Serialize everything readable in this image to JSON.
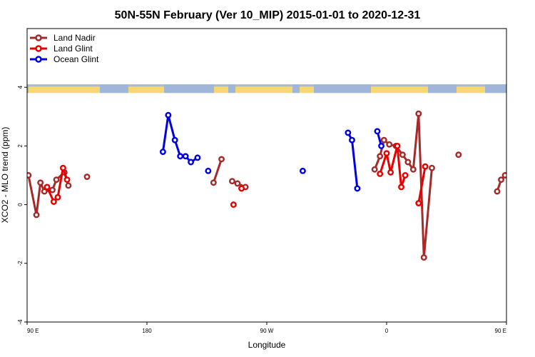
{
  "chart_data": {
    "type": "line",
    "title": "50N-55N February (Ver 10_MIP)   2015-01-01 to 2020-12-31",
    "xlabel": "Longitude",
    "ylabel": "XCO2 - MLO trend (ppm)",
    "xlim": [
      90,
      450
    ],
    "ylim": [
      -4,
      6
    ],
    "x_ticks": [
      {
        "value": 90,
        "label": "90 E"
      },
      {
        "value": 180,
        "label": "180"
      },
      {
        "value": 270,
        "label": "90 W"
      },
      {
        "value": 360,
        "label": "0"
      },
      {
        "value": 450,
        "label": "90 E"
      }
    ],
    "y_ticks": [
      {
        "value": -4,
        "label": "-4"
      },
      {
        "value": -2,
        "label": "-2"
      },
      {
        "value": 0,
        "label": "0"
      },
      {
        "value": 2,
        "label": "2"
      },
      {
        "value": 4,
        "label": "4"
      }
    ],
    "grid": false,
    "legend_position": "top-left",
    "land_strip": {
      "y_center": 4,
      "land_color": "#f7d774",
      "ocean_color": "#9fb6d8"
    },
    "series": [
      {
        "name": "Land Nadir",
        "color": "#a52a2a",
        "segments": [
          [
            [
              91,
              1.0
            ],
            [
              97,
              -0.35
            ],
            [
              100,
              0.75
            ],
            [
              103,
              0.45
            ],
            [
              109,
              0.5
            ],
            [
              112,
              0.85
            ],
            [
              118,
              1.1
            ],
            [
              121,
              0.65
            ]
          ],
          [
            [
              135,
              0.95
            ]
          ],
          [
            [
              230,
              0.75
            ],
            [
              236,
              1.55
            ]
          ],
          [
            [
              244,
              0.8
            ],
            [
              248,
              0.72
            ],
            [
              254,
              0.6
            ]
          ],
          [
            [
              351,
              1.2
            ],
            [
              355,
              1.65
            ],
            [
              358,
              2.2
            ],
            [
              362,
              2.05
            ],
            [
              367,
              2.0
            ],
            [
              372,
              1.7
            ],
            [
              376,
              1.45
            ],
            [
              380,
              1.2
            ],
            [
              384,
              3.1
            ],
            [
              388,
              -1.8
            ],
            [
              394,
              1.25
            ]
          ],
          [
            [
              414,
              1.7
            ]
          ],
          [
            [
              443,
              0.45
            ],
            [
              446,
              0.85
            ],
            [
              449,
              1.0
            ]
          ]
        ]
      },
      {
        "name": "Land Glint",
        "color": "#e60000",
        "segments": [
          [
            [
              105,
              0.6
            ],
            [
              110,
              0.1
            ],
            [
              113,
              0.25
            ],
            [
              117,
              1.25
            ],
            [
              120,
              0.85
            ]
          ],
          [
            [
              245,
              0.0
            ]
          ],
          [
            [
              251,
              0.55
            ]
          ],
          [
            [
              355,
              1.05
            ],
            [
              360,
              1.75
            ],
            [
              363,
              1.1
            ],
            [
              368,
              2.0
            ],
            [
              371,
              0.6
            ],
            [
              374,
              1.0
            ]
          ],
          [
            [
              384,
              0.05
            ],
            [
              389,
              1.3
            ]
          ]
        ]
      },
      {
        "name": "Ocean Glint",
        "color": "#0000e6",
        "segments": [
          [
            [
              192,
              1.8
            ],
            [
              196,
              3.05
            ],
            [
              201,
              2.2
            ],
            [
              205,
              1.65
            ],
            [
              209,
              1.65
            ],
            [
              213,
              1.45
            ],
            [
              218,
              1.6
            ]
          ],
          [
            [
              226,
              1.15
            ]
          ],
          [
            [
              297,
              1.15
            ]
          ],
          [
            [
              331,
              2.45
            ],
            [
              334,
              2.2
            ],
            [
              338,
              0.55
            ]
          ],
          [
            [
              353,
              2.5
            ],
            [
              356,
              2.0
            ]
          ]
        ]
      }
    ]
  }
}
